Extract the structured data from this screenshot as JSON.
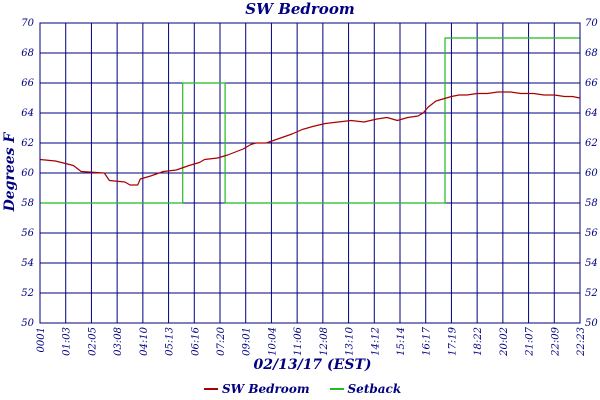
{
  "chart_data": {
    "type": "line",
    "title": "SW Bedroom",
    "xlabel": "02/13/17 (EST)",
    "ylabel": "Degrees F",
    "ylim": [
      50,
      70
    ],
    "yticks": [
      50,
      52,
      54,
      56,
      58,
      60,
      62,
      64,
      66,
      68,
      70
    ],
    "grid": true,
    "legend_position": "bottom",
    "xtick_labels": [
      "0001",
      "01:03",
      "02:05",
      "03:08",
      "04:10",
      "05:13",
      "06:16",
      "07:20",
      "09:01",
      "10:04",
      "11:06",
      "12:08",
      "13:10",
      "14:12",
      "15:14",
      "16:17",
      "17:19",
      "18:22",
      "20:02",
      "21:07",
      "22:09",
      "22:23"
    ],
    "series": [
      {
        "name": "SW Bedroom",
        "color": "#aa0000",
        "points": [
          [
            0,
            60.9
          ],
          [
            0.6,
            60.8
          ],
          [
            1.3,
            60.5
          ],
          [
            1.6,
            60.1
          ],
          [
            2.5,
            60.0
          ],
          [
            2.7,
            59.5
          ],
          [
            3.3,
            59.4
          ],
          [
            3.5,
            59.2
          ],
          [
            3.8,
            59.2
          ],
          [
            3.9,
            59.6
          ],
          [
            4.3,
            59.8
          ],
          [
            4.8,
            60.1
          ],
          [
            5.3,
            60.2
          ],
          [
            5.8,
            60.5
          ],
          [
            6.2,
            60.7
          ],
          [
            6.4,
            60.9
          ],
          [
            6.9,
            61.0
          ],
          [
            7.3,
            61.2
          ],
          [
            7.6,
            61.4
          ],
          [
            7.9,
            61.6
          ],
          [
            8.2,
            61.9
          ],
          [
            8.4,
            62.0
          ],
          [
            8.8,
            62.0
          ],
          [
            9.3,
            62.3
          ],
          [
            9.8,
            62.6
          ],
          [
            10.2,
            62.9
          ],
          [
            10.6,
            63.1
          ],
          [
            11.1,
            63.3
          ],
          [
            11.6,
            63.4
          ],
          [
            12.1,
            63.5
          ],
          [
            12.6,
            63.4
          ],
          [
            13.1,
            63.6
          ],
          [
            13.5,
            63.7
          ],
          [
            13.9,
            63.5
          ],
          [
            14.3,
            63.7
          ],
          [
            14.7,
            63.8
          ],
          [
            14.9,
            64.0
          ],
          [
            15.1,
            64.4
          ],
          [
            15.4,
            64.8
          ],
          [
            15.8,
            65.0
          ],
          [
            16.0,
            65.1
          ],
          [
            16.3,
            65.2
          ],
          [
            16.6,
            65.2
          ],
          [
            17.0,
            65.3
          ],
          [
            17.4,
            65.3
          ],
          [
            17.8,
            65.4
          ],
          [
            18.3,
            65.4
          ],
          [
            18.7,
            65.3
          ],
          [
            19.2,
            65.3
          ],
          [
            19.6,
            65.2
          ],
          [
            20.0,
            65.2
          ],
          [
            20.4,
            65.1
          ],
          [
            20.7,
            65.1
          ],
          [
            21.0,
            65.0
          ]
        ]
      },
      {
        "name": "Setback",
        "color": "#22bb22",
        "points": [
          [
            0,
            58
          ],
          [
            5.55,
            58
          ],
          [
            5.55,
            66
          ],
          [
            7.2,
            66
          ],
          [
            7.2,
            58
          ],
          [
            15.75,
            58
          ],
          [
            15.75,
            69
          ],
          [
            21,
            69
          ]
        ]
      }
    ]
  }
}
